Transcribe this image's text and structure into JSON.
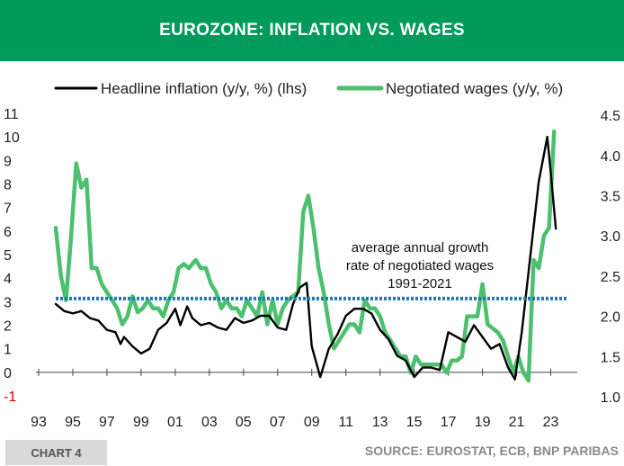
{
  "header": {
    "title": "EUROZONE: INFLATION VS. WAGES"
  },
  "footer": {
    "chart_label": "CHART 4",
    "source": "SOURCE: EUROSTAT, ECB, BNP PARIBAS"
  },
  "colors": {
    "banner": "#009a5a",
    "inflation": "#000000",
    "wages": "#4cc06e",
    "average": "#1f78b4"
  },
  "chart_data": {
    "type": "line",
    "title": "EUROZONE: INFLATION VS. WAGES",
    "legend_position": "top",
    "x_ticks": [
      "93",
      "95",
      "97",
      "99",
      "01",
      "03",
      "05",
      "07",
      "09",
      "11",
      "13",
      "15",
      "17",
      "19",
      "21",
      "23"
    ],
    "x_range": [
      1993,
      2024.5
    ],
    "y_left": {
      "range": [
        -1,
        11
      ],
      "ticks": [
        "-1",
        "0",
        "1",
        "2",
        "3",
        "4",
        "5",
        "6",
        "7",
        "8",
        "9",
        "10",
        "11"
      ]
    },
    "y_right": {
      "range": [
        0.95,
        4.55
      ],
      "ticks": [
        "1.0",
        "1.5",
        "2.0",
        "2.5",
        "3.0",
        "3.5",
        "4.0",
        "4.5"
      ]
    },
    "annotation": {
      "lines": [
        "average annual growth",
        "rate of negotiated wages",
        "1991-2021"
      ],
      "value_rhs": 2.22
    },
    "series": [
      {
        "name": "Headline inflation (y/y, %) (lhs)",
        "axis": "left",
        "color": "#000000",
        "points": [
          [
            1994.0,
            2.9
          ],
          [
            1994.5,
            2.6
          ],
          [
            1995.0,
            2.5
          ],
          [
            1995.5,
            2.6
          ],
          [
            1996.0,
            2.3
          ],
          [
            1996.5,
            2.2
          ],
          [
            1997.0,
            1.8
          ],
          [
            1997.5,
            1.7
          ],
          [
            1997.8,
            1.2
          ],
          [
            1998.0,
            1.5
          ],
          [
            1998.5,
            1.1
          ],
          [
            1999.0,
            0.8
          ],
          [
            1999.5,
            1.0
          ],
          [
            2000.0,
            1.8
          ],
          [
            2000.5,
            2.1
          ],
          [
            2001.0,
            2.7
          ],
          [
            2001.3,
            2.0
          ],
          [
            2001.7,
            2.8
          ],
          [
            2002.0,
            2.3
          ],
          [
            2002.5,
            2.0
          ],
          [
            2003.0,
            2.1
          ],
          [
            2003.5,
            1.9
          ],
          [
            2004.0,
            1.8
          ],
          [
            2004.5,
            2.3
          ],
          [
            2005.0,
            2.1
          ],
          [
            2005.5,
            2.2
          ],
          [
            2006.0,
            2.4
          ],
          [
            2006.5,
            2.4
          ],
          [
            2007.0,
            1.9
          ],
          [
            2007.5,
            1.8
          ],
          [
            2007.9,
            2.9
          ],
          [
            2008.3,
            3.6
          ],
          [
            2008.7,
            3.8
          ],
          [
            2009.0,
            1.1
          ],
          [
            2009.5,
            -0.2
          ],
          [
            2010.0,
            1.0
          ],
          [
            2010.5,
            1.6
          ],
          [
            2011.0,
            2.4
          ],
          [
            2011.5,
            2.7
          ],
          [
            2012.0,
            2.7
          ],
          [
            2012.5,
            2.5
          ],
          [
            2013.0,
            1.8
          ],
          [
            2013.5,
            1.4
          ],
          [
            2014.0,
            0.7
          ],
          [
            2014.5,
            0.5
          ],
          [
            2015.0,
            -0.2
          ],
          [
            2015.5,
            0.2
          ],
          [
            2016.0,
            0.2
          ],
          [
            2016.5,
            0.1
          ],
          [
            2017.0,
            1.7
          ],
          [
            2017.5,
            1.5
          ],
          [
            2018.0,
            1.3
          ],
          [
            2018.5,
            2.0
          ],
          [
            2019.0,
            1.5
          ],
          [
            2019.5,
            1.0
          ],
          [
            2020.0,
            1.2
          ],
          [
            2020.5,
            0.2
          ],
          [
            2020.9,
            -0.3
          ],
          [
            2021.3,
            1.7
          ],
          [
            2021.8,
            4.9
          ],
          [
            2022.3,
            8.1
          ],
          [
            2022.8,
            10.0
          ],
          [
            2023.0,
            8.5
          ],
          [
            2023.3,
            6.1
          ]
        ]
      },
      {
        "name": "Negotiated wages (y/y, %)",
        "axis": "right",
        "color": "#4cc06e",
        "points": [
          [
            1994.0,
            3.1
          ],
          [
            1994.3,
            2.5
          ],
          [
            1994.6,
            2.2
          ],
          [
            1994.9,
            3.0
          ],
          [
            1995.2,
            3.9
          ],
          [
            1995.5,
            3.6
          ],
          [
            1995.8,
            3.7
          ],
          [
            1996.1,
            2.6
          ],
          [
            1996.4,
            2.6
          ],
          [
            1996.7,
            2.4
          ],
          [
            1997.0,
            2.3
          ],
          [
            1997.3,
            2.2
          ],
          [
            1997.6,
            2.1
          ],
          [
            1997.9,
            1.9
          ],
          [
            1998.2,
            2.0
          ],
          [
            1998.5,
            2.25
          ],
          [
            1998.8,
            2.05
          ],
          [
            1999.1,
            2.1
          ],
          [
            1999.4,
            2.2
          ],
          [
            1999.7,
            2.1
          ],
          [
            2000.0,
            2.1
          ],
          [
            2000.3,
            2.0
          ],
          [
            2000.6,
            2.2
          ],
          [
            2000.9,
            2.3
          ],
          [
            2001.2,
            2.6
          ],
          [
            2001.5,
            2.65
          ],
          [
            2001.8,
            2.6
          ],
          [
            2002.2,
            2.7
          ],
          [
            2002.5,
            2.6
          ],
          [
            2002.8,
            2.6
          ],
          [
            2003.1,
            2.4
          ],
          [
            2003.4,
            2.3
          ],
          [
            2003.7,
            2.1
          ],
          [
            2004.0,
            2.2
          ],
          [
            2004.3,
            2.1
          ],
          [
            2004.6,
            2.1
          ],
          [
            2004.9,
            2.0
          ],
          [
            2005.2,
            2.2
          ],
          [
            2005.5,
            2.1
          ],
          [
            2005.8,
            2.0
          ],
          [
            2006.1,
            2.3
          ],
          [
            2006.4,
            1.9
          ],
          [
            2006.7,
            2.2
          ],
          [
            2007.0,
            1.9
          ],
          [
            2007.3,
            2.1
          ],
          [
            2007.6,
            2.2
          ],
          [
            2007.9,
            2.25
          ],
          [
            2008.2,
            2.3
          ],
          [
            2008.5,
            3.3
          ],
          [
            2008.8,
            3.5
          ],
          [
            2009.1,
            3.1
          ],
          [
            2009.4,
            2.6
          ],
          [
            2009.7,
            2.3
          ],
          [
            2010.0,
            1.9
          ],
          [
            2010.3,
            1.6
          ],
          [
            2010.6,
            1.7
          ],
          [
            2010.9,
            1.8
          ],
          [
            2011.2,
            1.9
          ],
          [
            2011.5,
            1.9
          ],
          [
            2011.8,
            1.8
          ],
          [
            2012.1,
            2.2
          ],
          [
            2012.4,
            2.1
          ],
          [
            2012.7,
            2.1
          ],
          [
            2013.0,
            2.0
          ],
          [
            2013.3,
            1.8
          ],
          [
            2013.6,
            1.7
          ],
          [
            2013.9,
            1.6
          ],
          [
            2014.2,
            1.5
          ],
          [
            2014.5,
            1.5
          ],
          [
            2014.8,
            1.3
          ],
          [
            2015.1,
            1.5
          ],
          [
            2015.4,
            1.4
          ],
          [
            2015.7,
            1.4
          ],
          [
            2016.0,
            1.4
          ],
          [
            2016.3,
            1.4
          ],
          [
            2016.6,
            1.4
          ],
          [
            2016.9,
            1.3
          ],
          [
            2017.2,
            1.45
          ],
          [
            2017.5,
            1.45
          ],
          [
            2017.8,
            1.5
          ],
          [
            2018.1,
            2.0
          ],
          [
            2018.4,
            2.0
          ],
          [
            2018.7,
            2.0
          ],
          [
            2019.0,
            2.4
          ],
          [
            2019.3,
            1.9
          ],
          [
            2019.6,
            1.85
          ],
          [
            2019.9,
            1.8
          ],
          [
            2020.2,
            1.7
          ],
          [
            2020.5,
            1.5
          ],
          [
            2020.8,
            1.3
          ],
          [
            2021.1,
            1.5
          ],
          [
            2021.4,
            1.3
          ],
          [
            2021.7,
            1.2
          ],
          [
            2022.0,
            2.7
          ],
          [
            2022.3,
            2.6
          ],
          [
            2022.6,
            3.0
          ],
          [
            2022.9,
            3.1
          ],
          [
            2023.2,
            4.3
          ]
        ]
      },
      {
        "name": "Average annual growth of negotiated wages 1991-2021",
        "axis": "right",
        "color": "#1f78b4",
        "style": "dotted",
        "points": [
          [
            1994.0,
            2.22
          ],
          [
            2024.0,
            2.22
          ]
        ]
      }
    ]
  }
}
